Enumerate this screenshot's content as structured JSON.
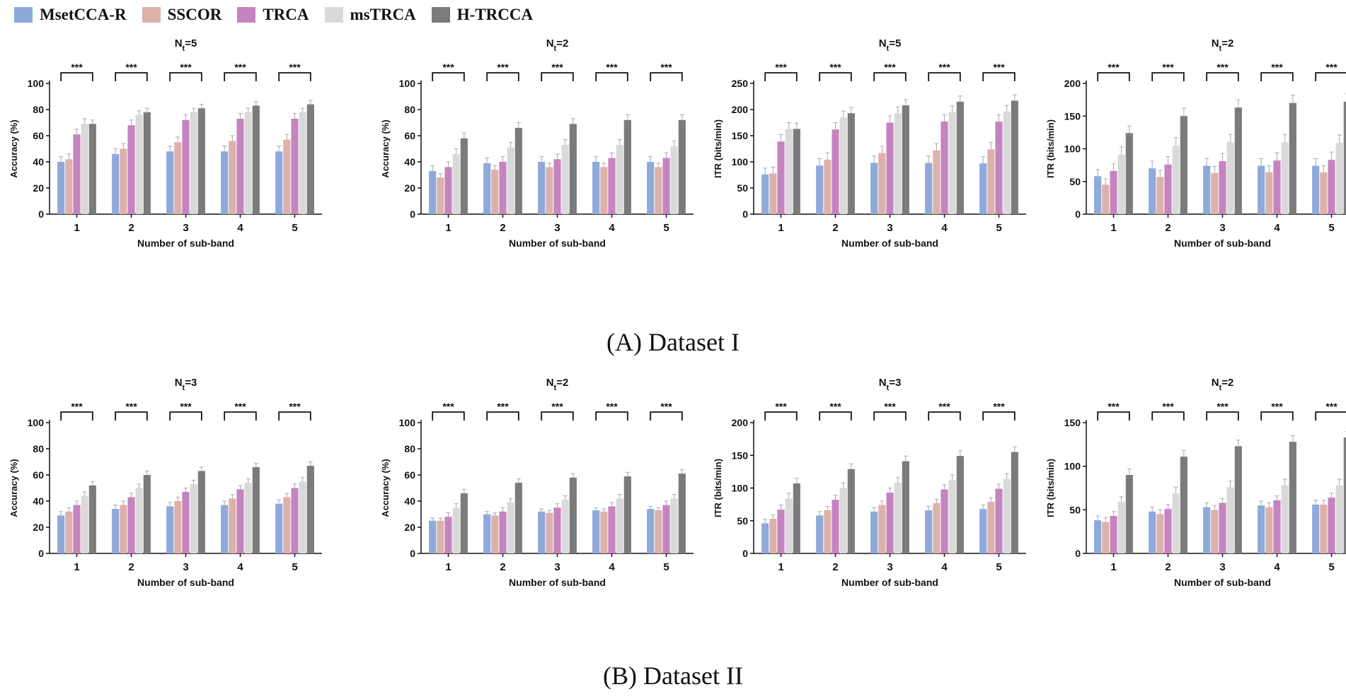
{
  "legend": {
    "series": [
      {
        "name": "MsetCCA-R",
        "color": "#8eaadb"
      },
      {
        "name": "SSCOR",
        "color": "#ddb1ab"
      },
      {
        "name": "TRCA",
        "color": "#c584c0"
      },
      {
        "name": "msTRCA",
        "color": "#d9d9d9"
      },
      {
        "name": "H-TRCCA",
        "color": "#7b7b7b"
      }
    ]
  },
  "captions": {
    "dataset1": "(A) Dataset I",
    "dataset2": "(B) Dataset II"
  },
  "chart_data": [
    {
      "type": "bar",
      "title": "N_t=5",
      "title_main": "N",
      "title_sub": "t",
      "title_rest": "=5",
      "xlabel": "Number of sub-band",
      "ylabel": "Accuracy (%)",
      "categories": [
        "1",
        "2",
        "3",
        "4",
        "5"
      ],
      "ylim": [
        0,
        100
      ],
      "yticks": [
        0,
        20,
        40,
        60,
        80,
        100
      ],
      "significance": "***",
      "series": [
        {
          "name": "MsetCCA-R",
          "values": [
            40,
            46,
            48,
            48,
            48
          ],
          "errors": [
            4,
            4,
            4,
            4,
            4
          ]
        },
        {
          "name": "SSCOR",
          "values": [
            42,
            50,
            55,
            56,
            57
          ],
          "errors": [
            4,
            4,
            4,
            4,
            4
          ]
        },
        {
          "name": "TRCA",
          "values": [
            61,
            68,
            72,
            73,
            73
          ],
          "errors": [
            4,
            4,
            4,
            4,
            4
          ]
        },
        {
          "name": "msTRCA",
          "values": [
            69,
            76,
            78,
            78,
            78
          ],
          "errors": [
            4,
            3,
            3,
            3,
            3
          ]
        },
        {
          "name": "H-TRCCA",
          "values": [
            69,
            78,
            81,
            83,
            84
          ],
          "errors": [
            3,
            3,
            3,
            3,
            3
          ]
        }
      ]
    },
    {
      "type": "bar",
      "title": "N_t=2",
      "title_main": "N",
      "title_sub": "t",
      "title_rest": "=2",
      "xlabel": "Number of sub-band",
      "ylabel": "Accuracy (%)",
      "categories": [
        "1",
        "2",
        "3",
        "4",
        "5"
      ],
      "ylim": [
        0,
        100
      ],
      "yticks": [
        0,
        20,
        40,
        60,
        80,
        100
      ],
      "significance": "***",
      "series": [
        {
          "name": "MsetCCA-R",
          "values": [
            33,
            39,
            40,
            40,
            40
          ],
          "errors": [
            4,
            4,
            4,
            4,
            4
          ]
        },
        {
          "name": "SSCOR",
          "values": [
            28,
            34,
            36,
            36,
            36
          ],
          "errors": [
            3,
            3,
            3,
            3,
            3
          ]
        },
        {
          "name": "TRCA",
          "values": [
            36,
            40,
            42,
            43,
            43
          ],
          "errors": [
            4,
            4,
            4,
            4,
            4
          ]
        },
        {
          "name": "msTRCA",
          "values": [
            46,
            51,
            53,
            53,
            52
          ],
          "errors": [
            4,
            4,
            4,
            4,
            4
          ]
        },
        {
          "name": "H-TRCCA",
          "values": [
            58,
            66,
            69,
            72,
            72
          ],
          "errors": [
            4,
            4,
            4,
            4,
            4
          ]
        }
      ]
    },
    {
      "type": "bar",
      "title": "N_t=5",
      "title_main": "N",
      "title_sub": "t",
      "title_rest": "=5",
      "xlabel": "Number of sub-band",
      "ylabel": "ITR (bits/min)",
      "categories": [
        "1",
        "2",
        "3",
        "4",
        "5"
      ],
      "ylim": [
        0,
        250
      ],
      "yticks": [
        0,
        50,
        100,
        150,
        200,
        250
      ],
      "significance": "***",
      "series": [
        {
          "name": "MsetCCA-R",
          "values": [
            76,
            93,
            98,
            98,
            97
          ],
          "errors": [
            12,
            13,
            13,
            13,
            13
          ]
        },
        {
          "name": "SSCOR",
          "values": [
            78,
            104,
            117,
            122,
            124
          ],
          "errors": [
            12,
            13,
            13,
            13,
            13
          ]
        },
        {
          "name": "TRCA",
          "values": [
            139,
            162,
            175,
            177,
            177
          ],
          "errors": [
            13,
            13,
            13,
            13,
            13
          ]
        },
        {
          "name": "msTRCA",
          "values": [
            163,
            185,
            193,
            195,
            196
          ],
          "errors": [
            12,
            12,
            12,
            12,
            12
          ]
        },
        {
          "name": "H-TRCCA",
          "values": [
            163,
            193,
            208,
            215,
            217
          ],
          "errors": [
            11,
            11,
            11,
            11,
            11
          ]
        }
      ]
    },
    {
      "type": "bar",
      "title": "N_t=2",
      "title_main": "N",
      "title_sub": "t",
      "title_rest": "=2",
      "xlabel": "Number of sub-band",
      "ylabel": "ITR (bits/min)",
      "categories": [
        "1",
        "2",
        "3",
        "4",
        "5"
      ],
      "ylim": [
        0,
        200
      ],
      "yticks": [
        0,
        50,
        100,
        150,
        200
      ],
      "significance": "***",
      "series": [
        {
          "name": "MsetCCA-R",
          "values": [
            58,
            70,
            74,
            74,
            74
          ],
          "errors": [
            10,
            11,
            11,
            11,
            11
          ]
        },
        {
          "name": "SSCOR",
          "values": [
            45,
            57,
            63,
            64,
            64
          ],
          "errors": [
            9,
            10,
            10,
            10,
            10
          ]
        },
        {
          "name": "TRCA",
          "values": [
            66,
            76,
            81,
            82,
            83
          ],
          "errors": [
            11,
            12,
            12,
            12,
            12
          ]
        },
        {
          "name": "msTRCA",
          "values": [
            91,
            105,
            110,
            110,
            109
          ],
          "errors": [
            12,
            12,
            12,
            12,
            12
          ]
        },
        {
          "name": "H-TRCCA",
          "values": [
            124,
            150,
            163,
            170,
            172
          ],
          "errors": [
            11,
            12,
            12,
            12,
            12
          ]
        }
      ]
    },
    {
      "type": "bar",
      "title": "N_t=3",
      "title_main": "N",
      "title_sub": "t",
      "title_rest": "=3",
      "xlabel": "Number of sub-band",
      "ylabel": "Accuracy (%)",
      "categories": [
        "1",
        "2",
        "3",
        "4",
        "5"
      ],
      "ylim": [
        0,
        100
      ],
      "yticks": [
        0,
        20,
        40,
        60,
        80,
        100
      ],
      "significance": "***",
      "series": [
        {
          "name": "MsetCCA-R",
          "values": [
            29,
            34,
            36,
            37,
            38
          ],
          "errors": [
            3,
            3,
            3,
            3,
            3
          ]
        },
        {
          "name": "SSCOR",
          "values": [
            32,
            37,
            40,
            42,
            43
          ],
          "errors": [
            3,
            3,
            3,
            3,
            3
          ]
        },
        {
          "name": "TRCA",
          "values": [
            37,
            43,
            47,
            49,
            50
          ],
          "errors": [
            3,
            3,
            3,
            3,
            3
          ]
        },
        {
          "name": "msTRCA",
          "values": [
            44,
            50,
            53,
            54,
            55
          ],
          "errors": [
            3,
            3,
            3,
            3,
            3
          ]
        },
        {
          "name": "H-TRCCA",
          "values": [
            52,
            60,
            63,
            66,
            67
          ],
          "errors": [
            3,
            3,
            3,
            3,
            3
          ]
        }
      ]
    },
    {
      "type": "bar",
      "title": "N_t=2",
      "title_main": "N",
      "title_sub": "t",
      "title_rest": "=2",
      "xlabel": "Number of sub-band",
      "ylabel": "Accuracy (%)",
      "categories": [
        "1",
        "2",
        "3",
        "4",
        "5"
      ],
      "ylim": [
        0,
        100
      ],
      "yticks": [
        0,
        20,
        40,
        60,
        80,
        100
      ],
      "significance": "***",
      "series": [
        {
          "name": "MsetCCA-R",
          "values": [
            25,
            30,
            32,
            33,
            34
          ],
          "errors": [
            2,
            2,
            2,
            2,
            2
          ]
        },
        {
          "name": "SSCOR",
          "values": [
            25,
            29,
            31,
            32,
            33
          ],
          "errors": [
            2,
            2,
            2,
            2,
            2
          ]
        },
        {
          "name": "TRCA",
          "values": [
            28,
            32,
            35,
            36,
            37
          ],
          "errors": [
            3,
            3,
            3,
            3,
            3
          ]
        },
        {
          "name": "msTRCA",
          "values": [
            35,
            39,
            41,
            42,
            42
          ],
          "errors": [
            3,
            3,
            3,
            3,
            3
          ]
        },
        {
          "name": "H-TRCCA",
          "values": [
            46,
            54,
            58,
            59,
            61
          ],
          "errors": [
            3,
            3,
            3,
            3,
            3
          ]
        }
      ]
    },
    {
      "type": "bar",
      "title": "N_t=3",
      "title_main": "N",
      "title_sub": "t",
      "title_rest": "=3",
      "xlabel": "Number of sub-band",
      "ylabel": "ITR (bits/min)",
      "categories": [
        "1",
        "2",
        "3",
        "4",
        "5"
      ],
      "ylim": [
        0,
        200
      ],
      "yticks": [
        0,
        50,
        100,
        150,
        200
      ],
      "significance": "***",
      "series": [
        {
          "name": "MsetCCA-R",
          "values": [
            46,
            58,
            64,
            66,
            68
          ],
          "errors": [
            6,
            6,
            6,
            6,
            6
          ]
        },
        {
          "name": "SSCOR",
          "values": [
            53,
            66,
            74,
            77,
            79
          ],
          "errors": [
            6,
            6,
            6,
            6,
            6
          ]
        },
        {
          "name": "TRCA",
          "values": [
            67,
            82,
            93,
            98,
            99
          ],
          "errors": [
            7,
            7,
            7,
            7,
            7
          ]
        },
        {
          "name": "msTRCA",
          "values": [
            84,
            100,
            108,
            112,
            114
          ],
          "errors": [
            8,
            8,
            8,
            8,
            8
          ]
        },
        {
          "name": "H-TRCCA",
          "values": [
            107,
            129,
            141,
            149,
            155
          ],
          "errors": [
            8,
            8,
            8,
            8,
            8
          ]
        }
      ]
    },
    {
      "type": "bar",
      "title": "N_t=2",
      "title_main": "N",
      "title_sub": "t",
      "title_rest": "=2",
      "xlabel": "Number of sub-band",
      "ylabel": "ITR (bits/min)",
      "categories": [
        "1",
        "2",
        "3",
        "4",
        "5"
      ],
      "ylim": [
        0,
        150
      ],
      "yticks": [
        0,
        50,
        100,
        150
      ],
      "significance": "***",
      "series": [
        {
          "name": "MsetCCA-R",
          "values": [
            38,
            48,
            53,
            55,
            56
          ],
          "errors": [
            5,
            5,
            5,
            5,
            5
          ]
        },
        {
          "name": "SSCOR",
          "values": [
            36,
            45,
            50,
            53,
            56
          ],
          "errors": [
            5,
            5,
            5,
            5,
            5
          ]
        },
        {
          "name": "TRCA",
          "values": [
            43,
            51,
            58,
            61,
            64
          ],
          "errors": [
            5,
            5,
            5,
            5,
            5
          ]
        },
        {
          "name": "msTRCA",
          "values": [
            59,
            69,
            76,
            78,
            78
          ],
          "errors": [
            6,
            7,
            7,
            7,
            7
          ]
        },
        {
          "name": "H-TRCCA",
          "values": [
            90,
            111,
            123,
            128,
            133
          ],
          "errors": [
            7,
            7,
            7,
            7,
            7
          ]
        }
      ]
    }
  ]
}
